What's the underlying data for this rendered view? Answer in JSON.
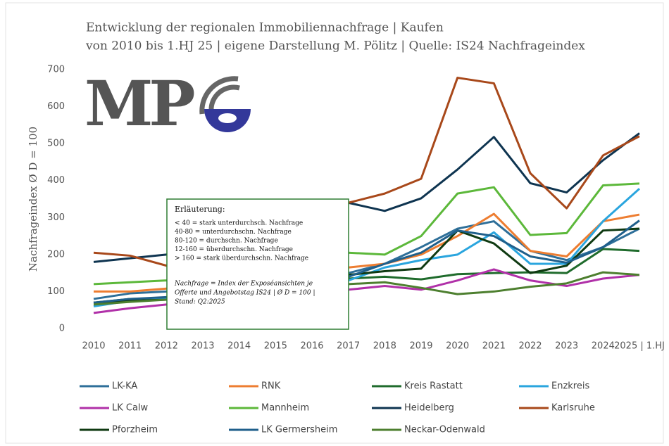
{
  "chart_data": {
    "type": "line",
    "title": "Entwicklung der regionalen Immobiliennachfrage | Kaufen",
    "subtitle": "von 2010 bis 1.HJ 25 | eigene Darstellung M. Pölitz | Quelle: IS24 Nachfrageindex",
    "y_label": "Nachfrageindex Ø D = 100",
    "logo": "MP",
    "categories": [
      "2010",
      "2011",
      "2012",
      "2013",
      "2014",
      "2015",
      "2016",
      "2017",
      "2018",
      "2019",
      "2020",
      "2021",
      "2022",
      "2023",
      "2024",
      "2025 | 1.HJ"
    ],
    "ylim": [
      0,
      700
    ],
    "yticks": [
      0,
      100,
      200,
      300,
      400,
      500,
      600,
      700
    ],
    "grid": false,
    "legend": "bottom",
    "series": [
      {
        "name": "LK-KA",
        "color": "#2e6f99",
        "values": [
          80,
          95,
          100,
          108,
          115,
          122,
          132,
          150,
          175,
          220,
          270,
          290,
          210,
          185,
          220,
          270
        ]
      },
      {
        "name": "RNK",
        "color": "#ed7d31",
        "values": [
          100,
          100,
          108,
          115,
          120,
          128,
          140,
          165,
          175,
          200,
          250,
          310,
          210,
          195,
          290,
          308
        ]
      },
      {
        "name": "Kreis Rastatt",
        "color": "#1f6b2c",
        "values": [
          70,
          80,
          82,
          90,
          98,
          105,
          115,
          135,
          140,
          133,
          147,
          150,
          152,
          150,
          215,
          210
        ]
      },
      {
        "name": "Enzkreis",
        "color": "#2aa5de",
        "values": [
          60,
          75,
          80,
          88,
          95,
          102,
          112,
          130,
          165,
          185,
          200,
          260,
          175,
          175,
          290,
          378
        ]
      },
      {
        "name": "LK Calw",
        "color": "#b030a8",
        "values": [
          42,
          55,
          65,
          72,
          80,
          86,
          95,
          105,
          115,
          105,
          130,
          160,
          130,
          115,
          135,
          145
        ]
      },
      {
        "name": "Mannheim",
        "color": "#5cb83a",
        "values": [
          120,
          125,
          130,
          140,
          150,
          165,
          185,
          205,
          200,
          250,
          365,
          382,
          253,
          258,
          387,
          392
        ]
      },
      {
        "name": "Heidelberg",
        "color": "#0e3450",
        "values": [
          180,
          190,
          200,
          220,
          245,
          275,
          310,
          340,
          318,
          352,
          430,
          518,
          393,
          368,
          455,
          528
        ]
      },
      {
        "name": "Karlsruhe",
        "color": "#a8481a",
        "values": [
          205,
          197,
          170,
          190,
          220,
          260,
          300,
          340,
          365,
          405,
          678,
          663,
          420,
          325,
          468,
          520
        ]
      },
      {
        "name": "Pforzheim",
        "color": "#0f3a12",
        "values": [
          70,
          75,
          78,
          85,
          95,
          110,
          125,
          145,
          155,
          162,
          265,
          230,
          150,
          170,
          265,
          270
        ]
      },
      {
        "name": "LK Germersheim",
        "color": "#1f5f8b",
        "values": [
          70,
          80,
          85,
          92,
          100,
          108,
          120,
          140,
          175,
          205,
          265,
          250,
          195,
          178,
          220,
          292
        ]
      },
      {
        "name": "Neckar-Odenwald",
        "color": "#4d7f2f",
        "values": [
          65,
          72,
          78,
          84,
          90,
          96,
          105,
          120,
          125,
          110,
          93,
          100,
          113,
          122,
          152,
          145
        ]
      }
    ],
    "annotation": {
      "title": "Erläuterung:",
      "lines": [
        "< 40 = stark unterdurchsch. Nachfrage",
        "40-80 = unterdurchschn. Nachfrage",
        "80-120 = durchschn. Nachfrage",
        "12-160 = überdurchschn. Nachfrage",
        "> 160 = stark überdurchschn. Nachfrage"
      ],
      "note": [
        "Nachfrage = Index der Exposéansichten je",
        "Offerte und Angebotstag IS24 | Ø D = 100 |",
        "Stand: Q2:2025"
      ]
    }
  }
}
